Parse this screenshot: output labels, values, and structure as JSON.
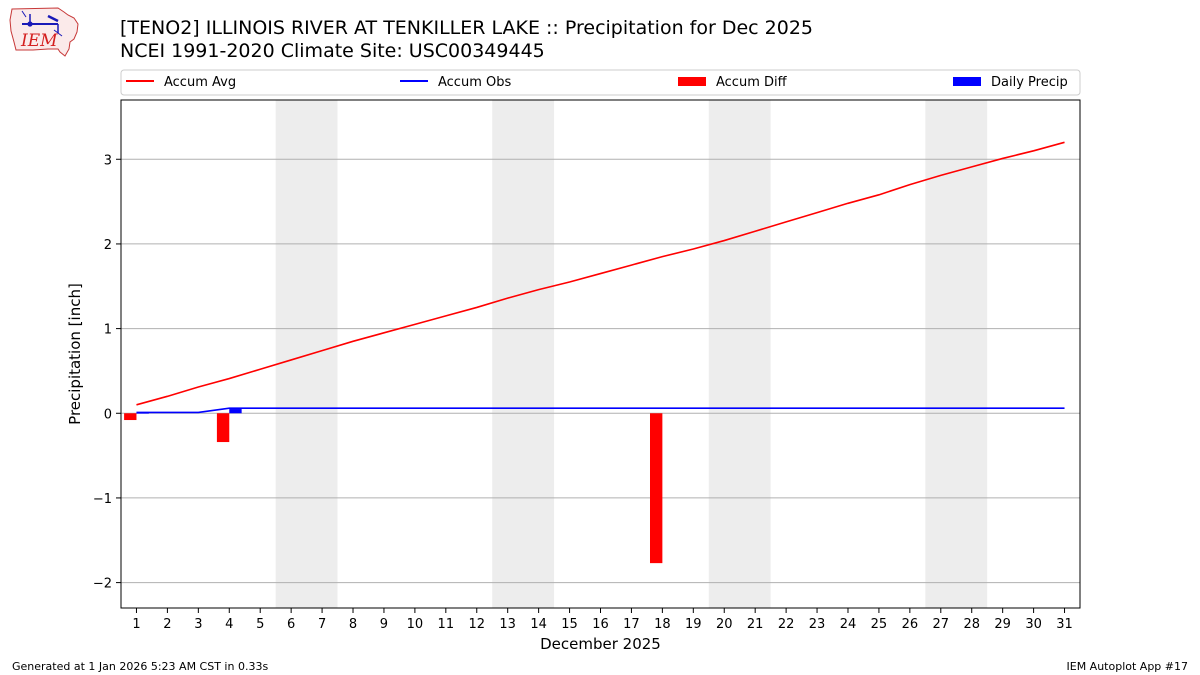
{
  "header": {
    "title_line1": "[TENO2] ILLINOIS RIVER  AT TENKILLER LAKE :: Precipitation for Dec 2025",
    "title_line2": "NCEI 1991-2020 Climate Site: USC00349445",
    "logo_text": "IEM"
  },
  "footer": {
    "generated": "Generated at 1 Jan 2026 5:23 AM CST in 0.33s",
    "app": "IEM Autoplot App #17"
  },
  "colors": {
    "accum_avg": "#ff0000",
    "accum_obs": "#0000ff",
    "accum_diff": "#ff0000",
    "daily_precip": "#0000ff",
    "weekend_shade": "#ededed",
    "grid": "#b0b0b0"
  },
  "chart_data": {
    "type": "line",
    "title": "[TENO2] ILLINOIS RIVER  AT TENKILLER LAKE :: Precipitation for Dec 2025",
    "xlabel": "December 2025",
    "ylabel": "Precipitation [inch]",
    "xlim": [
      0.5,
      31.5
    ],
    "ylim": [
      -2.3,
      3.7
    ],
    "y_ticks": [
      -2,
      -1,
      0,
      1,
      2,
      3
    ],
    "y_tick_labels": [
      "−2",
      "−1",
      "0",
      "1",
      "2",
      "3"
    ],
    "x_ticks": [
      1,
      2,
      3,
      4,
      5,
      6,
      7,
      8,
      9,
      10,
      11,
      12,
      13,
      14,
      15,
      16,
      17,
      18,
      19,
      20,
      21,
      22,
      23,
      24,
      25,
      26,
      27,
      28,
      29,
      30,
      31
    ],
    "x_tick_labels": [
      "1",
      "2",
      "3",
      "4",
      "5",
      "6",
      "7",
      "8",
      "9",
      "10",
      "11",
      "12",
      "13",
      "14",
      "15",
      "16",
      "17",
      "18",
      "19",
      "20",
      "21",
      "22",
      "23",
      "24",
      "25",
      "26",
      "27",
      "28",
      "29",
      "30",
      "31"
    ],
    "grid": "y",
    "legend": {
      "position": "top",
      "entries": [
        {
          "label": "Accum Avg",
          "kind": "line",
          "color": "#ff0000"
        },
        {
          "label": "Accum Obs",
          "kind": "line",
          "color": "#0000ff"
        },
        {
          "label": "Accum Diff",
          "kind": "bar",
          "color": "#ff0000"
        },
        {
          "label": "Daily Precip",
          "kind": "bar",
          "color": "#0000ff"
        }
      ]
    },
    "weekend_spans": [
      [
        5.5,
        7.5
      ],
      [
        12.5,
        14.5
      ],
      [
        19.5,
        21.5
      ],
      [
        26.5,
        28.5
      ]
    ],
    "series": [
      {
        "name": "Accum Avg",
        "kind": "line",
        "color": "#ff0000",
        "x": [
          1,
          2,
          3,
          4,
          5,
          6,
          7,
          8,
          9,
          10,
          11,
          12,
          13,
          14,
          15,
          16,
          17,
          18,
          19,
          20,
          21,
          22,
          23,
          24,
          25,
          26,
          27,
          28,
          29,
          30,
          31
        ],
        "values": [
          0.1,
          0.2,
          0.31,
          0.41,
          0.52,
          0.63,
          0.74,
          0.85,
          0.95,
          1.05,
          1.15,
          1.25,
          1.36,
          1.46,
          1.55,
          1.65,
          1.75,
          1.85,
          1.94,
          2.04,
          2.15,
          2.26,
          2.37,
          2.48,
          2.58,
          2.7,
          2.81,
          2.91,
          3.01,
          3.1,
          3.2
        ]
      },
      {
        "name": "Accum Obs",
        "kind": "line",
        "color": "#0000ff",
        "x": [
          1,
          2,
          3,
          4,
          5,
          6,
          7,
          8,
          9,
          10,
          11,
          12,
          13,
          14,
          15,
          16,
          17,
          18,
          19,
          20,
          21,
          22,
          23,
          24,
          25,
          26,
          27,
          28,
          29,
          30,
          31
        ],
        "values": [
          0.01,
          0.01,
          0.01,
          0.06,
          0.06,
          0.06,
          0.06,
          0.06,
          0.06,
          0.06,
          0.06,
          0.06,
          0.06,
          0.06,
          0.06,
          0.06,
          0.06,
          0.06,
          0.06,
          0.06,
          0.06,
          0.06,
          0.06,
          0.06,
          0.06,
          0.06,
          0.06,
          0.06,
          0.06,
          0.06,
          0.06
        ]
      },
      {
        "name": "Accum Diff",
        "kind": "bar",
        "color": "#ff0000",
        "x": [
          1,
          4,
          18
        ],
        "values": [
          -0.08,
          -0.34,
          -1.77
        ]
      },
      {
        "name": "Daily Precip",
        "kind": "bar",
        "color": "#0000ff",
        "x": [
          1,
          4
        ],
        "values": [
          0.01,
          0.05
        ]
      }
    ]
  }
}
